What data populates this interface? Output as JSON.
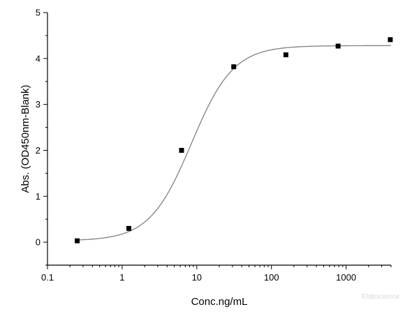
{
  "chart_data": {
    "type": "scatter",
    "title": "",
    "xlabel": "Conc.ng/mL",
    "ylabel": "Abs. (OD450nm-Blank)",
    "x_scale": "log",
    "xlim": [
      0.1,
      4000
    ],
    "ylim": [
      -0.5,
      5
    ],
    "x_ticks": [
      0.1,
      1,
      10,
      100,
      1000
    ],
    "x_tick_labels": [
      "0.1",
      "1",
      "10",
      "100",
      "1000"
    ],
    "y_ticks": [
      0,
      1,
      2,
      3,
      4,
      5
    ],
    "y_tick_labels": [
      "0",
      "1",
      "2",
      "3",
      "4",
      "5"
    ],
    "grid": false,
    "series": [
      {
        "marker": "square",
        "color": "#000000",
        "x": [
          0.25,
          1.23,
          6.25,
          31.25,
          156,
          781,
          3906
        ],
        "y": [
          0.03,
          0.3,
          2.0,
          3.82,
          4.08,
          4.27,
          4.41
        ]
      }
    ],
    "fit_curve": {
      "model": "4PL",
      "color": "#808080",
      "bottom": 0.03,
      "top": 4.28,
      "ec50": 8.5,
      "hill": 1.55,
      "x_range": [
        0.25,
        4000
      ]
    }
  },
  "watermark": "Elabscience"
}
